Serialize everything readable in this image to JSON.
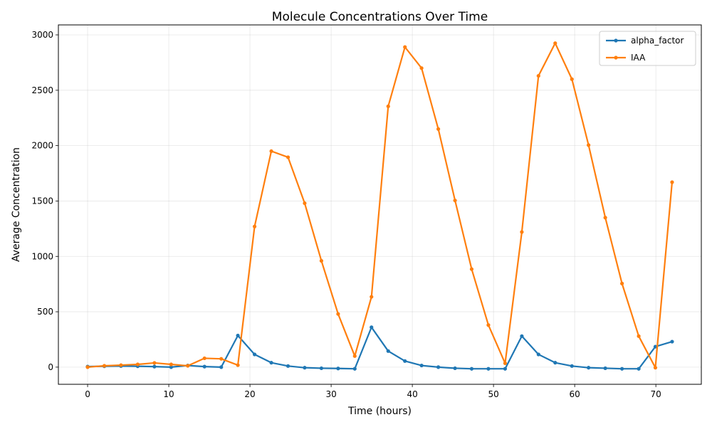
{
  "chart_data": {
    "type": "line",
    "title": "Molecule Concentrations Over Time",
    "xlabel": "Time (hours)",
    "ylabel": "Average Concentration",
    "xlim": [
      -3.6,
      75.6
    ],
    "ylim": [
      -155,
      3090
    ],
    "xticks": [
      0,
      10,
      20,
      30,
      40,
      50,
      60,
      70
    ],
    "yticks": [
      0,
      500,
      1000,
      1500,
      2000,
      2500,
      3000
    ],
    "grid": true,
    "legend_position": "top-right",
    "x": [
      0,
      2.06,
      4.11,
      6.17,
      8.23,
      10.29,
      12.34,
      14.4,
      16.46,
      18.51,
      20.57,
      22.63,
      24.69,
      26.74,
      28.8,
      30.86,
      32.91,
      34.97,
      37.03,
      39.09,
      41.14,
      43.2,
      45.26,
      47.31,
      49.37,
      51.43,
      53.49,
      55.54,
      57.6,
      59.66,
      61.71,
      63.77,
      65.83,
      67.89,
      69.94,
      72
    ],
    "series": [
      {
        "name": "alpha_factor",
        "color": "#1f77b4",
        "values": [
          5,
          8,
          10,
          8,
          5,
          0,
          15,
          5,
          0,
          285,
          115,
          40,
          10,
          -5,
          -10,
          -12,
          -15,
          360,
          145,
          55,
          15,
          0,
          -10,
          -15,
          -15,
          -15,
          280,
          115,
          40,
          10,
          -5,
          -10,
          -15,
          -15,
          185,
          230
        ]
      },
      {
        "name": "IAA",
        "color": "#ff7f0e",
        "values": [
          0,
          12,
          18,
          25,
          38,
          25,
          12,
          80,
          75,
          18,
          1270,
          1950,
          1895,
          1480,
          960,
          480,
          100,
          635,
          2355,
          2890,
          2700,
          2150,
          1505,
          885,
          380,
          35,
          1220,
          2630,
          2925,
          2600,
          2005,
          1350,
          755,
          280,
          -5,
          1670
        ]
      }
    ]
  }
}
